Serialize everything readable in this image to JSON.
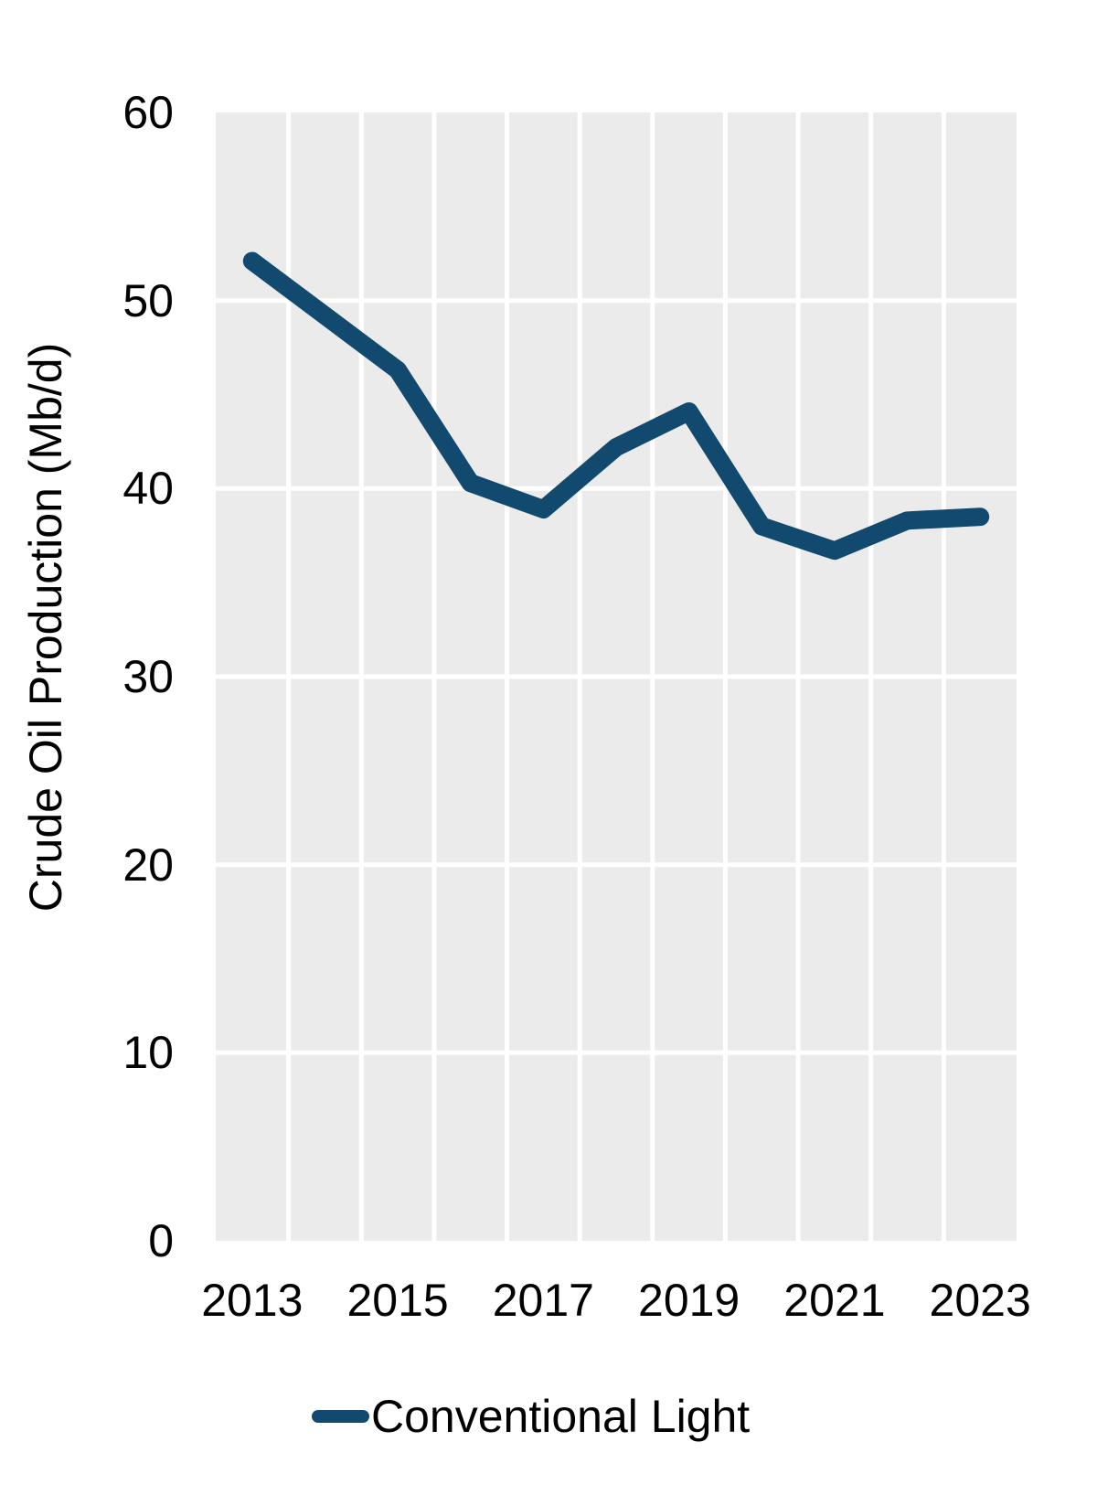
{
  "chart_data": {
    "type": "line",
    "title": "",
    "xlabel": "",
    "ylabel": "Crude Oil Production (Mb/d)",
    "x": [
      2013,
      2014,
      2015,
      2016,
      2017,
      2018,
      2019,
      2020,
      2021,
      2022,
      2023
    ],
    "series": [
      {
        "name": "Conventional Light",
        "color": "#114A6E",
        "values": [
          52.1,
          49.2,
          46.3,
          40.3,
          38.9,
          42.2,
          44.1,
          38.0,
          36.7,
          38.3,
          38.5
        ]
      }
    ],
    "xlim": [
      2012.5,
      2023.5
    ],
    "ylim": [
      0,
      60
    ],
    "xticks": [
      2013,
      2015,
      2017,
      2019,
      2021,
      2023
    ],
    "yticks": [
      0,
      10,
      20,
      30,
      40,
      50,
      60
    ],
    "y_gridlines": [
      10,
      20,
      30,
      40,
      50
    ],
    "x_gridlines": [
      2013.5,
      2014.5,
      2015.5,
      2016.5,
      2017.5,
      2018.5,
      2019.5,
      2020.5,
      2021.5,
      2022.5
    ],
    "grid": true,
    "legend_position": "bottom"
  },
  "colors": {
    "line": "#114A6E",
    "panel_background": "#EBEBEB",
    "gridline": "#FFFFFF",
    "text": "#000000",
    "background": "#FFFFFF"
  },
  "legend": {
    "label": "Conventional Light"
  }
}
